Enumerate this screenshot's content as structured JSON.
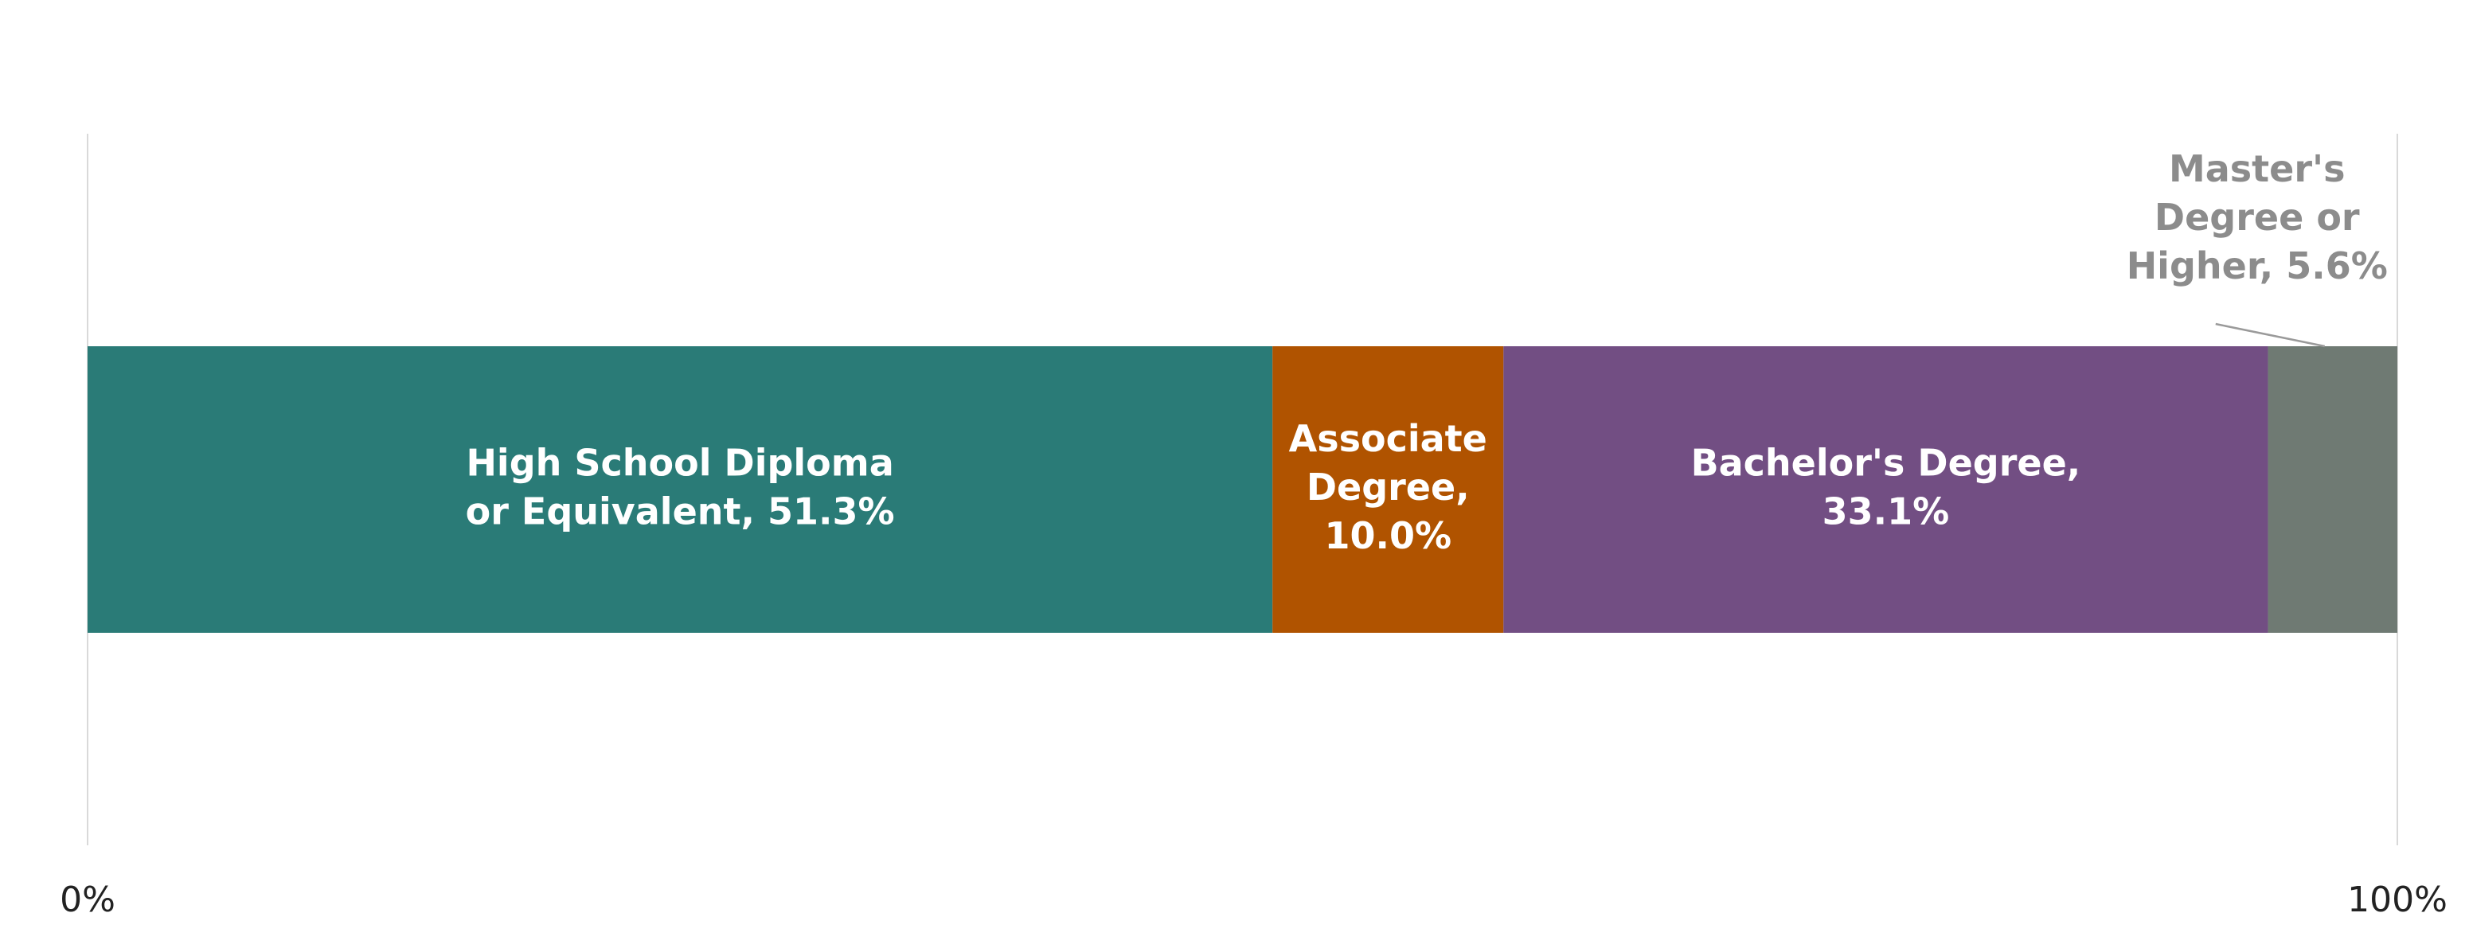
{
  "chart_data": {
    "type": "bar",
    "orientation": "horizontal",
    "stacked": true,
    "title": "",
    "xlabel": "",
    "ylabel": "",
    "xlim": [
      0,
      100
    ],
    "grid": false,
    "legend": "none",
    "x_ticks": [
      "0%",
      "100%"
    ],
    "series": [
      {
        "name": "High School Diploma or Equivalent",
        "value": 51.3,
        "color": "#2a7b77",
        "label_lines": [
          "High School Diploma",
          "or Equivalent, 51.3%"
        ],
        "label_position": "inside"
      },
      {
        "name": "Associate Degree",
        "value": 10.0,
        "color": "#b05300",
        "label_lines": [
          "Associate",
          "Degree,",
          "10.0%"
        ],
        "label_position": "inside"
      },
      {
        "name": "Bachelor's Degree",
        "value": 33.1,
        "color": "#724e83",
        "label_lines": [
          "Bachelor's Degree,",
          "33.1%"
        ],
        "label_position": "inside"
      },
      {
        "name": "Master's Degree or Higher",
        "value": 5.6,
        "color": "#6f7a73",
        "label_lines": [
          "Master's",
          "Degree or",
          "Higher, 5.6%"
        ],
        "label_position": "outside-above",
        "label_color": "#8c8c8c"
      }
    ]
  }
}
